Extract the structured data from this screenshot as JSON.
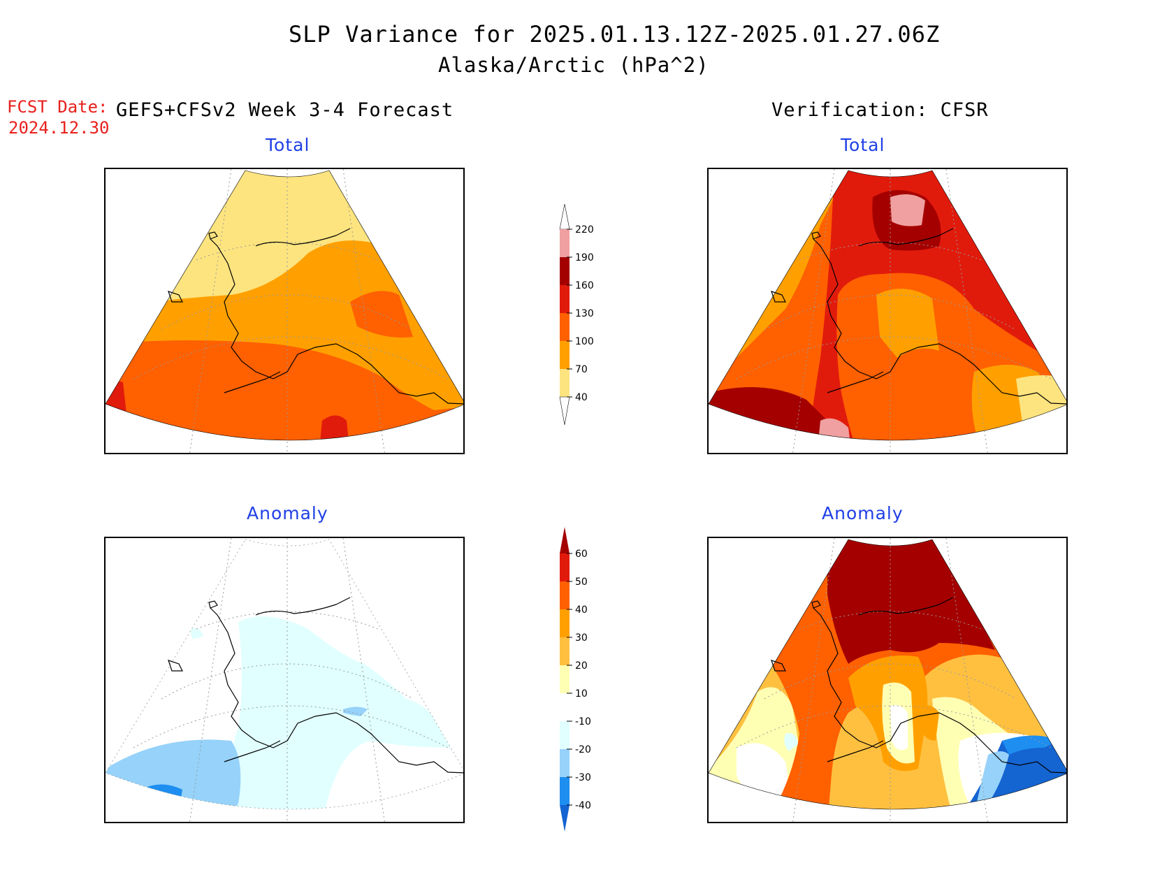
{
  "title": "SLP Variance for 2025.01.13.12Z-2025.01.27.06Z",
  "subtitle": "Alaska/Arctic (hPa^2)",
  "fcst_date_label": "FCST Date:",
  "fcst_date_value": "2024.12.30",
  "left_header": "GEFS+CFSv2 Week 3-4 Forecast",
  "right_header": "Verification: CFSR",
  "panels": {
    "forecast_total": "Total",
    "verification_total": "Total",
    "forecast_anomaly": "Anomaly",
    "verification_anomaly": "Anomaly"
  },
  "colorbar_total": {
    "levels": [
      "40",
      "70",
      "100",
      "130",
      "160",
      "190",
      "220"
    ],
    "colors": [
      "#fde47f",
      "#ffa000",
      "#ff6000",
      "#e11b0c",
      "#a50000",
      "#f0a0a0"
    ]
  },
  "colorbar_anomaly": {
    "levels": [
      "-40",
      "-30",
      "-20",
      "-10",
      "10",
      "20",
      "30",
      "40",
      "50",
      "60"
    ],
    "colors": [
      "#1464d2",
      "#1e8ef0",
      "#96d2fa",
      "#e1ffff",
      "#ffffff",
      "#ffffb4",
      "#ffc040",
      "#ffa000",
      "#ff6000",
      "#e11b0c",
      "#a50000"
    ]
  },
  "colors": {
    "title_panel": "#1f3fe6",
    "fcst_date": "#e8201c"
  }
}
